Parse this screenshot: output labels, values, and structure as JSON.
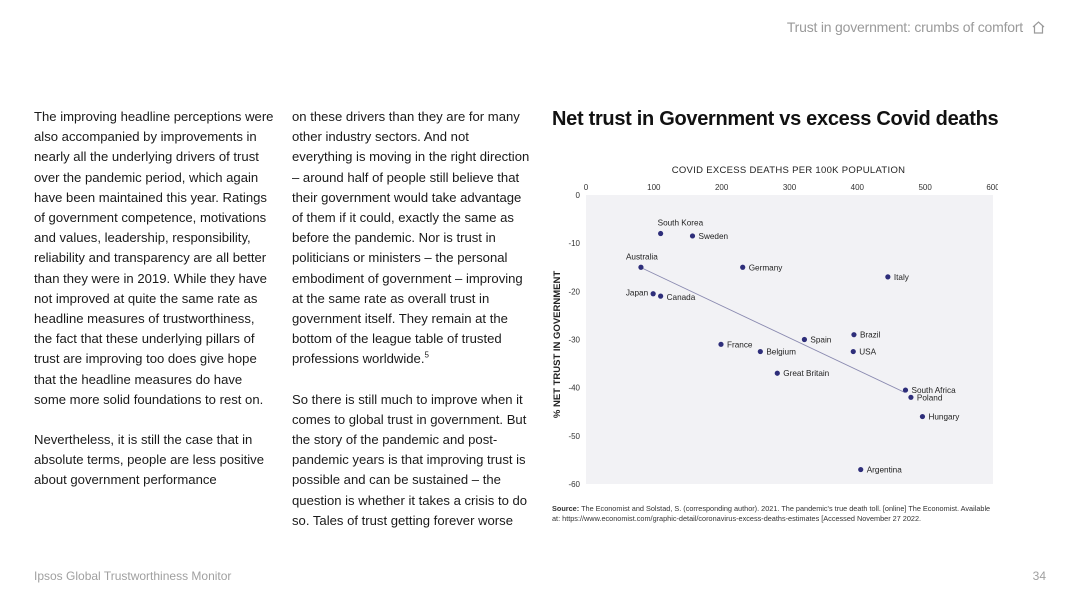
{
  "header": {
    "section_title": "Trust in government: crumbs of comfort",
    "icon": "home-icon"
  },
  "body": {
    "column_1": [
      "The improving headline perceptions were also accompanied by improvements in nearly all the underlying drivers of trust over the pandemic period, which again have been maintained this year. Ratings of government competence, motivations and values, leadership, responsibility, reliability and transparency are all better than they were in 2019. While they have not improved at quite the same rate as headline measures of trustworthiness, the fact that these underlying pillars of trust are improving too does give hope that the headline measures do have some more solid foundations to rest on.",
      "Nevertheless, it is still the case that in absolute terms, people are less positive about government performance"
    ],
    "column_2": {
      "p1": "on these drivers than they are for many other industry sectors. And not everything is moving in the right direction – around half of people still believe that their government would take advantage of them if it could, exactly the same as before the pandemic. Nor is trust in politicians or ministers – the personal embodiment of government – improving at the same rate as overall trust in government itself. They remain at the bottom of the league table of trusted professions worldwide.",
      "p1_footnote": "5",
      "p2": "So there is still much to improve when it comes to global trust in government. But the story of the pandemic and post-pandemic years is that improving trust is possible and can be sustained – the question is whether it takes a crisis to do so. Tales of trust getting forever worse"
    }
  },
  "chart_title": "Net trust in Government vs excess Covid deaths",
  "chart_data": {
    "type": "scatter",
    "xlabel": "COVID EXCESS DEATHS PER 100K POPULATION",
    "ylabel": "% NET TRUST IN GOVERNMENT",
    "xlim": [
      0,
      600
    ],
    "ylim": [
      -60,
      0
    ],
    "x_ticks": [
      0,
      100,
      200,
      300,
      400,
      500,
      600
    ],
    "y_ticks": [
      0,
      -10,
      -20,
      -30,
      -40,
      -50,
      -60
    ],
    "x_axis_position": "top",
    "grid": false,
    "trendline": {
      "x": [
        80,
        470
      ],
      "y": [
        -15,
        -41
      ]
    },
    "colors": {
      "point": "#2e2e7a",
      "trendline": "#8a8ab0",
      "plot_bg": "#f2f2f5"
    },
    "points": [
      {
        "label": "South Korea",
        "x": 110,
        "y": -8
      },
      {
        "label": "Sweden",
        "x": 157,
        "y": -8.5
      },
      {
        "label": "Australia",
        "x": 81,
        "y": -15
      },
      {
        "label": "Germany",
        "x": 231,
        "y": -15
      },
      {
        "label": "Italy",
        "x": 445,
        "y": -17
      },
      {
        "label": "Japan",
        "x": 99,
        "y": -20.5
      },
      {
        "label": "Canada",
        "x": 110,
        "y": -21
      },
      {
        "label": "France",
        "x": 199,
        "y": -31
      },
      {
        "label": "Spain",
        "x": 322,
        "y": -30
      },
      {
        "label": "Belgium",
        "x": 257,
        "y": -32.5
      },
      {
        "label": "Brazil",
        "x": 395,
        "y": -29
      },
      {
        "label": "USA",
        "x": 394,
        "y": -32.5
      },
      {
        "label": "Great Britain",
        "x": 282,
        "y": -37
      },
      {
        "label": "South Africa",
        "x": 471,
        "y": -40.5
      },
      {
        "label": "Poland",
        "x": 479,
        "y": -42
      },
      {
        "label": "Hungary",
        "x": 496,
        "y": -46
      },
      {
        "label": "Argentina",
        "x": 405,
        "y": -57
      }
    ]
  },
  "source": {
    "label": "Source:",
    "text": "The Economist and Solstad, S. (corresponding author). 2021. The pandemic's true death toll. [online] The Economist. Available at: https://www.economist.com/graphic-detail/coronavirus-excess-deaths-estimates [Accessed November 27 2022."
  },
  "footer": {
    "publication": "Ipsos Global Trustworthiness Monitor",
    "page_number": "34"
  }
}
